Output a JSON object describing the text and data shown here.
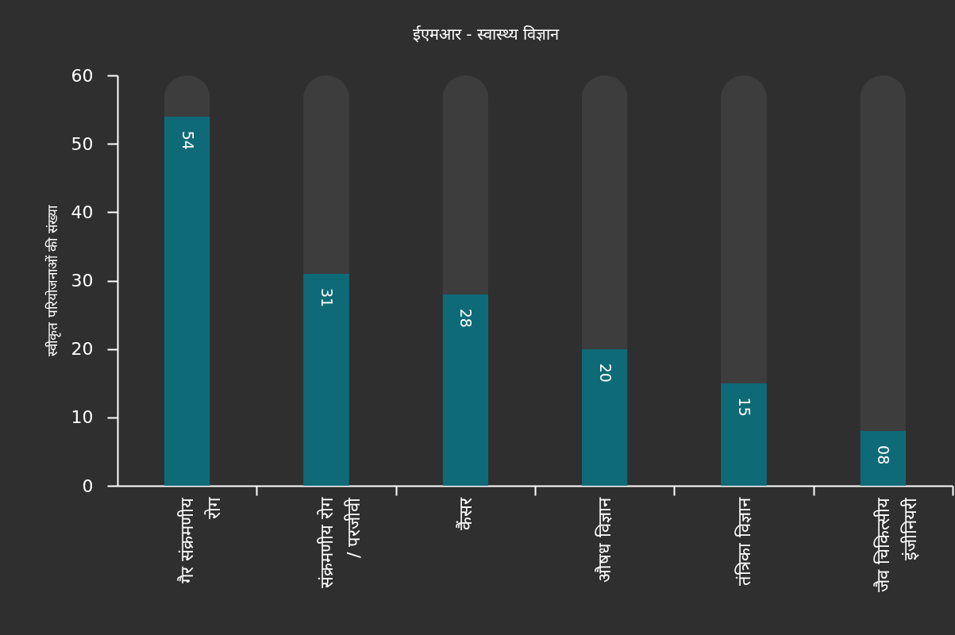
{
  "chart_data": {
    "type": "bar",
    "title": "ईएमआर - स्वास्थ्य विज्ञान",
    "ylabel": "स्वीकृत परियोजनाओं की संख्या",
    "categories": [
      "गैर संक्रमणीय\nरोग",
      "संक्रमणीय रोग\n/ परजीवी",
      "कैंसर",
      "औषध विज्ञान",
      "तंत्रिका विज्ञान",
      "जैव चिकित्सीय\nइंजीनियरी"
    ],
    "stacked": true,
    "series": [
      {
        "color": "#0f6a78",
        "values": [
          54,
          31,
          28,
          20,
          15,
          8
        ],
        "value_labels": [
          "54",
          "31",
          "28",
          "20",
          "15",
          "08"
        ]
      },
      {
        "color": "#3d3d3d",
        "values": [
          6,
          29,
          32,
          40,
          45,
          52
        ]
      }
    ],
    "ylim": [
      0,
      60
    ],
    "yticks": [
      0,
      10,
      20,
      30,
      40,
      50,
      60
    ]
  }
}
